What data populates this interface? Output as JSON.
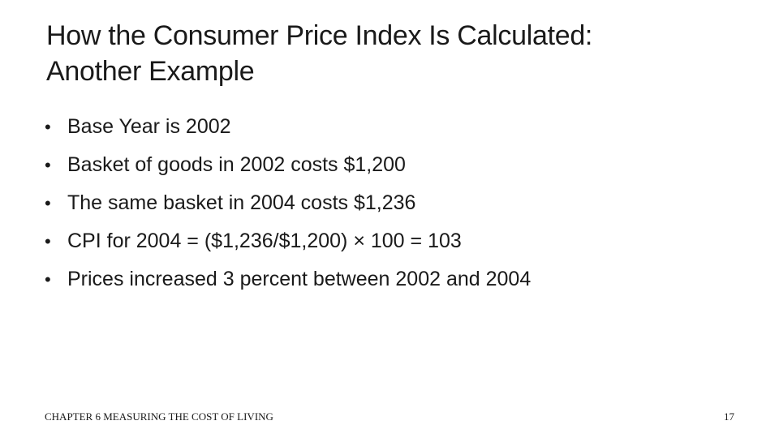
{
  "slide": {
    "title_line1": "How the Consumer Price Index Is Calculated:",
    "title_line2": "Another Example",
    "bullet_marker": "•",
    "bullets": [
      "Base Year is 2002",
      "Basket of goods in 2002 costs $1,200",
      "The same basket in 2004 costs $1,236",
      "CPI for 2004 = ($1,236/$1,200) × 100 = 103",
      "Prices increased 3 percent between 2002 and 2004"
    ]
  },
  "footer": {
    "chapter": "CHAPTER 6 MEASURING THE COST OF LIVING",
    "page_number": "17"
  }
}
